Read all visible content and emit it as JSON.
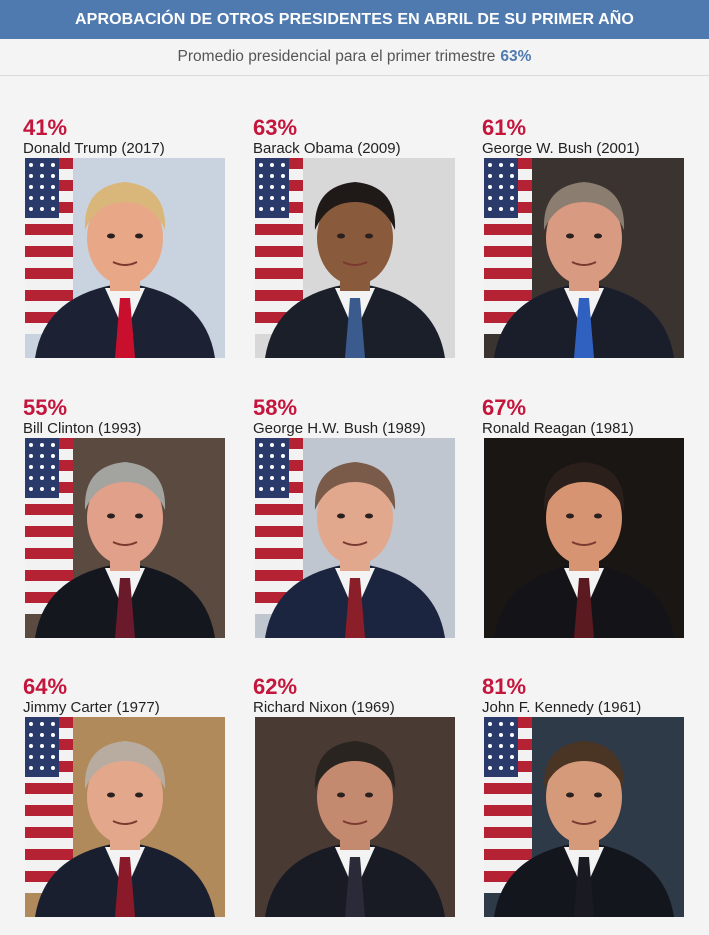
{
  "header": {
    "title": "APROBACIÓN DE OTROS PRESIDENTES EN ABRIL DE SU PRIMER AÑO"
  },
  "subheader": {
    "text": "Promedio presidencial para el primer trimestre",
    "average": "63%"
  },
  "chart_data": {
    "type": "table",
    "title": "APROBACIÓN DE OTROS PRESIDENTES EN ABRIL DE SU PRIMER AÑO",
    "subtitle": "Promedio presidencial para el primer trimestre 63%",
    "average_value": 63,
    "categories": [
      "Donald Trump (2017)",
      "Barack Obama (2009)",
      "George W. Bush (2001)",
      "Bill Clinton (1993)",
      "George H.W. Bush (1989)",
      "Ronald Reagan (1981)",
      "Jimmy Carter (1977)",
      "Richard Nixon (1969)",
      "John F. Kennedy (1961)"
    ],
    "values": [
      41,
      63,
      61,
      55,
      58,
      67,
      64,
      62,
      81
    ]
  },
  "presidents": [
    {
      "pct": "41%",
      "name": "Donald Trump (2017)",
      "bg": "#c9d3df",
      "hair": "#d9b77a",
      "skin": "#e8a888",
      "suit": "#1c2233",
      "tie": "#c8102e",
      "flag": true
    },
    {
      "pct": "63%",
      "name": "Barack Obama (2009)",
      "bg": "#d8d8d8",
      "hair": "#1f1a17",
      "skin": "#8a5a3c",
      "suit": "#1b1f2a",
      "tie": "#3b5b8f",
      "flag": true
    },
    {
      "pct": "61%",
      "name": "George W. Bush (2001)",
      "bg": "#3a3330",
      "hair": "#8b7d70",
      "skin": "#d89a80",
      "suit": "#1a1d2a",
      "tie": "#3060c0",
      "flag": true
    },
    {
      "pct": "55%",
      "name": "Bill Clinton (1993)",
      "bg": "#5a4a40",
      "hair": "#a3a3a0",
      "skin": "#e0a08a",
      "suit": "#15171f",
      "tie": "#6a1a2a",
      "flag": true
    },
    {
      "pct": "58%",
      "name": "George H.W. Bush (1989)",
      "bg": "#bfc6d0",
      "hair": "#7a5a48",
      "skin": "#e2a88e",
      "suit": "#1c2540",
      "tie": "#8a1f2a",
      "flag": true
    },
    {
      "pct": "67%",
      "name": "Ronald Reagan (1981)",
      "bg": "#1a1614",
      "hair": "#2a1f1a",
      "skin": "#d69472",
      "suit": "#141418",
      "tie": "#5a1a20",
      "flag": false
    },
    {
      "pct": "64%",
      "name": "Jimmy Carter (1977)",
      "bg": "#b08a5a",
      "hair": "#b8aca0",
      "skin": "#e3a88c",
      "suit": "#1a1f30",
      "tie": "#8a1a2a",
      "flag": true
    },
    {
      "pct": "62%",
      "name": "Richard Nixon (1969)",
      "bg": "#4a3a34",
      "hair": "#2a2420",
      "skin": "#c48a70",
      "suit": "#181a24",
      "tie": "#2a2a38",
      "flag": false
    },
    {
      "pct": "81%",
      "name": "John F. Kennedy (1961)",
      "bg": "#2e3a48",
      "hair": "#4a3424",
      "skin": "#d49a7a",
      "suit": "#14161e",
      "tie": "#1a1a22",
      "flag": true
    }
  ]
}
